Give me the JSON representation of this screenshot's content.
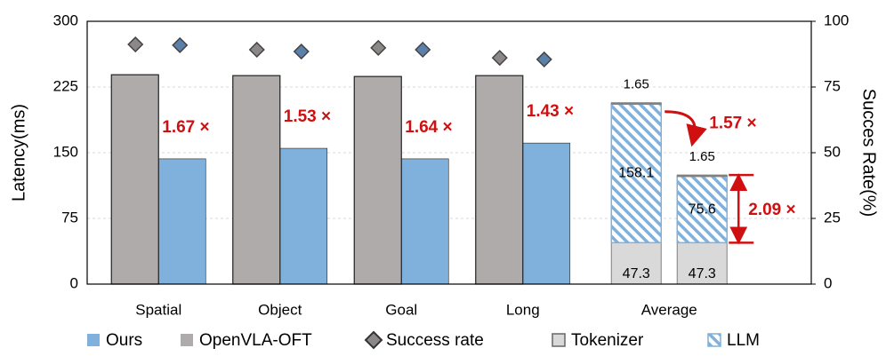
{
  "chart_data": {
    "type": "bar",
    "ylabel": "Latency(ms)",
    "y2label": "Succes Rate(%)",
    "categories": [
      "Spatial",
      "Object",
      "Goal",
      "Long",
      "Average"
    ],
    "ylim": [
      0,
      300
    ],
    "yticks": [
      0,
      75,
      150,
      225,
      300
    ],
    "y2lim": [
      0,
      100
    ],
    "y2ticks": [
      0,
      25,
      50,
      75,
      100
    ],
    "series": [
      {
        "name": "Ours",
        "color": "#7fb1dc",
        "values": [
          143,
          155,
          143,
          161,
          null
        ]
      },
      {
        "name": "OpenVLA-OFT",
        "color": "#b0abab",
        "values": [
          239,
          238,
          237,
          238,
          null
        ]
      }
    ],
    "success_rate": {
      "name": "Success rate",
      "axis": "y2",
      "color": "#8c8888",
      "series": [
        {
          "color": "#8c8888",
          "values": [
            91.2,
            89.2,
            89.9,
            86.1,
            null
          ]
        },
        {
          "color": "#5b80aa",
          "values": [
            90.9,
            88.5,
            89.2,
            85.5,
            null
          ]
        }
      ]
    },
    "stacks": [
      {
        "name": "Tokenizer",
        "color": "#d9d9d9",
        "values": [
          47.3,
          47.3
        ]
      },
      {
        "name": "LLM",
        "color": "#7fb1dc",
        "hatch": true,
        "values": [
          158.1,
          75.6
        ]
      },
      {
        "color": "#808080",
        "values": [
          1.65,
          1.65
        ]
      }
    ],
    "speedups": [
      "1.67 ×",
      "1.53 ×",
      "1.64 ×",
      "1.43 ×"
    ],
    "average_speedups": [
      "1.57 ×",
      "2.09 ×"
    ]
  }
}
